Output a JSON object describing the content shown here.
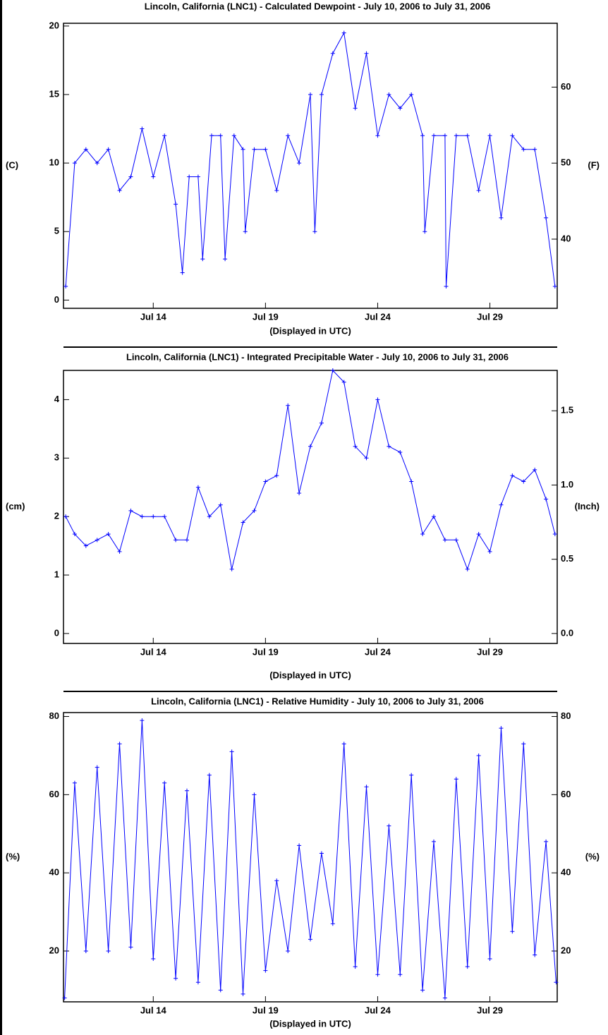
{
  "chart_data": [
    {
      "type": "line",
      "title": "Lincoln, California (LNC1) - Calculated Dewpoint - July 10, 2006 to July 31, 2006",
      "xlabel": "(Displayed in UTC)",
      "ylabel": "(C)",
      "y2label": "(F)",
      "color": "#0000ff",
      "x": [
        10.1,
        10.5,
        11,
        11.5,
        12,
        12.5,
        13,
        13.5,
        14,
        14.5,
        15,
        15.3,
        15.6,
        16,
        16.2,
        16.6,
        17,
        17.2,
        17.6,
        18,
        18.1,
        18.5,
        19,
        19.5,
        20,
        20.5,
        21,
        21.2,
        21.5,
        22,
        22.5,
        23,
        23.5,
        24,
        24.5,
        25,
        25.5,
        26,
        26.1,
        26.5,
        27,
        27.05,
        27.5,
        28,
        28.5,
        29,
        29.5,
        30,
        30.5,
        31,
        31.5,
        31.9
      ],
      "values": [
        1,
        10,
        11,
        10,
        11,
        8,
        9,
        12.5,
        9,
        12,
        7,
        2,
        9,
        9,
        3,
        12,
        12,
        3,
        12,
        11,
        5,
        11,
        11,
        8,
        12,
        10,
        15,
        5,
        15,
        18,
        19.5,
        14,
        18,
        12,
        15,
        14,
        15,
        12,
        5,
        12,
        12,
        1,
        12,
        12,
        8,
        12,
        6,
        12,
        11,
        11,
        6,
        1
      ],
      "xlim": [
        10,
        32
      ],
      "xticks": [
        {
          "value": 14,
          "label": "Jul 14"
        },
        {
          "value": 19,
          "label": "Jul 19"
        },
        {
          "value": 24,
          "label": "Jul 24"
        },
        {
          "value": 29,
          "label": "Jul 29"
        }
      ],
      "ylim": [
        -0.6,
        20.2
      ],
      "yticks": [
        0,
        5,
        10,
        15,
        20
      ],
      "y2lim": [
        30.9,
        68.4
      ],
      "y2ticks": [
        40,
        50,
        60
      ]
    },
    {
      "type": "line",
      "title": "Lincoln, California (LNC1) - Integrated Precipitable Water - July 10, 2006 to July 31, 2006",
      "xlabel": "(Displayed in UTC)",
      "ylabel": "(cm)",
      "y2label": "(Inch)",
      "color": "#0000ff",
      "x": [
        10.1,
        10.5,
        11,
        11.5,
        12,
        12.5,
        13,
        13.5,
        14,
        14.5,
        15,
        15.5,
        16,
        16.5,
        17,
        17.5,
        18,
        18.5,
        19,
        19.5,
        20,
        20.5,
        21,
        21.5,
        22,
        22.5,
        23,
        23.5,
        24,
        24.5,
        25,
        25.5,
        26,
        26.5,
        27,
        27.5,
        28,
        28.5,
        29,
        29.5,
        30,
        30.5,
        31,
        31.5,
        31.9
      ],
      "values": [
        2.0,
        1.7,
        1.5,
        1.6,
        1.7,
        1.4,
        2.1,
        2.0,
        2.0,
        2.0,
        1.6,
        1.6,
        2.5,
        2.0,
        2.2,
        1.1,
        1.9,
        2.1,
        2.6,
        2.7,
        3.9,
        2.4,
        3.2,
        3.6,
        4.5,
        4.3,
        3.2,
        3.0,
        4.0,
        3.2,
        3.1,
        2.6,
        1.7,
        2.0,
        1.6,
        1.6,
        1.1,
        1.7,
        1.4,
        2.2,
        2.7,
        2.6,
        2.8,
        2.3,
        1.7
      ],
      "xlim": [
        10,
        32
      ],
      "xticks": [
        {
          "value": 14,
          "label": "Jul 14"
        },
        {
          "value": 19,
          "label": "Jul 19"
        },
        {
          "value": 24,
          "label": "Jul 24"
        },
        {
          "value": 29,
          "label": "Jul 29"
        }
      ],
      "ylim": [
        -0.17,
        4.5
      ],
      "yticks": [
        0,
        1,
        2,
        3,
        4
      ],
      "y2lim": [
        -0.067,
        1.772
      ],
      "y2ticks": [
        {
          "value": 0,
          "label": "0.0"
        },
        0.5,
        {
          "value": 1,
          "label": "1.0"
        },
        1.5
      ]
    },
    {
      "type": "line",
      "title": "Lincoln, California (LNC1) - Relative Humidity - July 10, 2006 to July 31, 2006",
      "xlabel": "(Displayed in UTC)",
      "ylabel": "(%)",
      "y2label": "(%)",
      "color": "#0000ff",
      "x": [
        10.05,
        10.5,
        11,
        11.5,
        12,
        12.5,
        13,
        13.5,
        14,
        14.5,
        15,
        15.5,
        16,
        16.5,
        17,
        17.5,
        18,
        18.5,
        19,
        19.5,
        20,
        20.5,
        21,
        21.5,
        22,
        22.5,
        23,
        23.5,
        24,
        24.5,
        25,
        25.5,
        26,
        26.5,
        27,
        27.5,
        28,
        28.5,
        29,
        29.5,
        30,
        30.5,
        31,
        31.5,
        31.95
      ],
      "values": [
        8,
        63,
        20,
        67,
        20,
        73,
        21,
        79,
        18,
        63,
        13,
        61,
        12,
        65,
        10,
        71,
        9,
        60,
        15,
        38,
        20,
        47,
        23,
        45,
        27,
        73,
        16,
        62,
        14,
        52,
        14,
        65,
        10,
        48,
        8,
        64,
        16,
        70,
        18,
        77,
        25,
        73,
        19,
        48,
        12
      ],
      "xlim": [
        10,
        32
      ],
      "xticks": [
        {
          "value": 14,
          "label": "Jul 14"
        },
        {
          "value": 19,
          "label": "Jul 19"
        },
        {
          "value": 24,
          "label": "Jul 24"
        },
        {
          "value": 29,
          "label": "Jul 29"
        }
      ],
      "ylim": [
        7,
        81
      ],
      "yticks": [
        20,
        40,
        60,
        80
      ],
      "y2lim": [
        7,
        81
      ],
      "y2ticks": [
        20,
        40,
        60,
        80
      ]
    }
  ]
}
